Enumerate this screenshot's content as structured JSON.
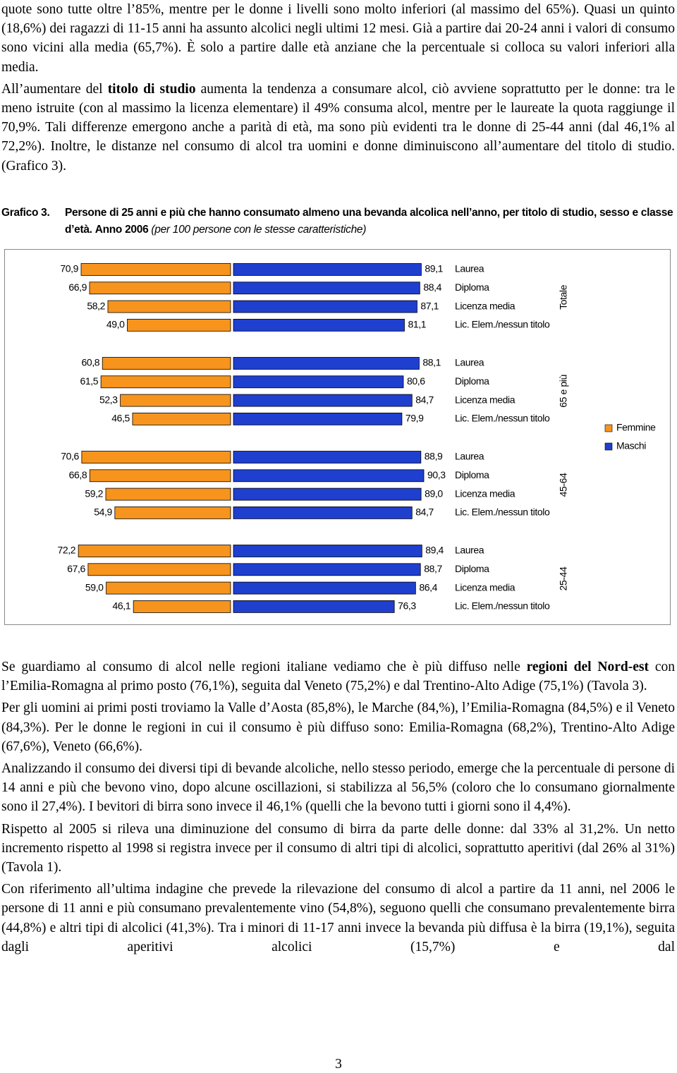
{
  "body_before": [
    [
      {
        "text": "quote sono tutte oltre l’85%, mentre per le donne i livelli sono molto inferiori (al massimo del 65%). Quasi un quinto (18,6%) dei ragazzi di 11-15 anni ha assunto alcolici negli ultimi 12 mesi. Già a partire dai 20-24 anni i valori di consumo sono vicini alla media (65,7%). È solo a partire dalle età anziane che la percentuale si colloca su valori inferiori alla media."
      }
    ],
    [
      {
        "text": "All’aumentare del "
      },
      {
        "text": "titolo di studio",
        "bold": true
      },
      {
        "text": " aumenta la tendenza a consumare alcol, ciò avviene soprattutto per le donne: tra le meno istruite (con al massimo la licenza elementare) il 49% consuma alcol, mentre per le laureate la quota raggiunge il 70,9%. Tali differenze emergono anche a parità di età, ma sono più evidenti tra le donne di 25-44 anni (dal 46,1% al 72,2%). Inoltre, le distanze nel consumo di alcol tra uomini e donne diminuiscono all’aumentare del titolo di studio. (Grafico 3)."
      }
    ]
  ],
  "figure": {
    "label": "Grafico 3.",
    "title": "Persone di 25 anni e più che hanno consumato almeno una bevanda alcolica nell’anno, per titolo di studio, sesso e classe d’età.",
    "year": "Anno 2006",
    "note": "(per 100 persone con le stesse caratteristiche)"
  },
  "chart_data": {
    "type": "bar",
    "orientation": "horizontal",
    "groups": [
      "Totale",
      "65 e più",
      "45-64",
      "25-44"
    ],
    "categories": [
      "Laurea",
      "Diploma",
      "Licenza media",
      "Lic. Elem./nessun titolo"
    ],
    "series": [
      {
        "name": "Femmine",
        "color": "#f7941d",
        "values": [
          [
            70.9,
            66.9,
            58.2,
            49.0
          ],
          [
            60.8,
            61.5,
            52.3,
            46.5
          ],
          [
            70.6,
            66.8,
            59.2,
            54.9
          ],
          [
            72.2,
            67.6,
            59.0,
            46.1
          ]
        ],
        "value_labels": [
          [
            "70,9",
            "66,9",
            "58,2",
            "49,0"
          ],
          [
            "60,8",
            "61,5",
            "52,3",
            "46,5"
          ],
          [
            "70,6",
            "66,8",
            "59,2",
            "54,9"
          ],
          [
            "72,2",
            "67,6",
            "59,0",
            "46,1"
          ]
        ]
      },
      {
        "name": "Maschi",
        "color": "#1f3fcf",
        "values": [
          [
            89.1,
            88.4,
            87.1,
            81.1
          ],
          [
            88.1,
            80.6,
            84.7,
            79.9
          ],
          [
            88.9,
            90.3,
            89.0,
            84.7
          ],
          [
            89.4,
            88.7,
            86.4,
            76.3
          ]
        ],
        "value_labels": [
          [
            "89,1",
            "88,4",
            "87,1",
            "81,1"
          ],
          [
            "88,1",
            "80,6",
            "84,7",
            "79,9"
          ],
          [
            "88,9",
            "90,3",
            "89,0",
            "84,7"
          ],
          [
            "89,4",
            "88,7",
            "86,4",
            "76,3"
          ]
        ]
      }
    ],
    "legend": "right"
  },
  "body_after": [
    [
      {
        "text": "Se guardiamo al consumo di alcol nelle regioni italiane vediamo che è più diffuso nelle "
      },
      {
        "text": "regioni del Nord-est",
        "bold": true
      },
      {
        "text": " con l’Emilia-Romagna al primo posto (76,1%), seguita dal Veneto (75,2%) e dal Trentino-Alto Adige (75,1%) (Tavola 3)."
      }
    ],
    [
      {
        "text": "Per gli uomini ai primi posti troviamo la Valle d’Aosta (85,8%), le Marche (84,%), l’Emilia-Romagna (84,5%) e il Veneto (84,3%). Per le donne le regioni in cui il consumo è più diffuso sono: Emilia-Romagna (68,2%), Trentino-Alto Adige (67,6%), Veneto (66,6%)."
      }
    ],
    [
      {
        "text": "Analizzando il consumo dei diversi tipi di bevande alcoliche, nello stesso periodo, emerge che la percentuale di persone di 14 anni e più che bevono vino, dopo alcune oscillazioni, si stabilizza al 56,5% (coloro che lo consumano giornalmente sono il 27,4%). I bevitori di birra sono invece il 46,1% (quelli che la bevono tutti i giorni sono il 4,4%)."
      }
    ],
    [
      {
        "text": "Rispetto al 2005 si rileva una diminuzione del consumo di birra da parte delle donne: dal 33% al 31,2%. Un netto incremento rispetto al 1998 si registra invece per il consumo di altri tipi di alcolici, soprattutto aperitivi (dal 26% al 31%) (Tavola 1)."
      }
    ],
    [
      {
        "text": "Con riferimento all’ultima indagine che prevede la rilevazione del consumo di alcol a partire da 11 anni, nel 2006 le persone di 11 anni e più consumano prevalentemente vino (54,8%), seguono quelli che consumano prevalentemente birra (44,8%) e altri tipi di alcolici (41,3%). Tra i minori di 11-17 anni invece la bevanda più diffusa è la birra (19,1%), seguita dagli aperitivi alcolici (15,7%) e dal"
      }
    ]
  ],
  "page_number": "3"
}
